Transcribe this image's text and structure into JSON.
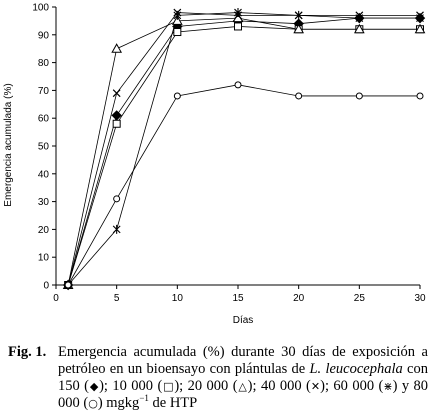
{
  "chart_data": {
    "type": "line",
    "xlabel": "Días",
    "ylabel": "Emergencia acumulada (%)",
    "xlim": [
      0,
      30
    ],
    "ylim": [
      0,
      100
    ],
    "xticks": [
      0,
      5,
      10,
      15,
      20,
      25,
      30
    ],
    "yticks": [
      0,
      10,
      20,
      30,
      40,
      50,
      60,
      70,
      80,
      90,
      100
    ],
    "grid": false,
    "legend": "none",
    "series": [
      {
        "marker": "diamond",
        "x": [
          1,
          5,
          10,
          15,
          20,
          25,
          30
        ],
        "y": [
          0,
          61,
          93,
          95,
          94,
          96,
          96
        ]
      },
      {
        "marker": "square",
        "x": [
          1,
          5,
          10,
          15,
          20,
          25,
          30
        ],
        "y": [
          0,
          58,
          91,
          93,
          92,
          92,
          92
        ]
      },
      {
        "marker": "triangle",
        "x": [
          1,
          5,
          10,
          15,
          20,
          25,
          30
        ],
        "y": [
          0,
          85,
          95,
          96,
          92,
          92,
          92
        ]
      },
      {
        "marker": "x",
        "x": [
          1,
          5,
          10,
          15,
          20,
          25,
          30
        ],
        "y": [
          0,
          69,
          98,
          97,
          97,
          97,
          97
        ]
      },
      {
        "marker": "asterisk",
        "x": [
          1,
          5,
          10,
          15,
          20,
          25,
          30
        ],
        "y": [
          0,
          20,
          97,
          98,
          97,
          96,
          96
        ]
      },
      {
        "marker": "circle",
        "x": [
          1,
          5,
          10,
          15,
          20,
          25,
          30
        ],
        "y": [
          0,
          31,
          68,
          72,
          68,
          68,
          68
        ]
      }
    ]
  },
  "caption": {
    "label": "Fig. 1.",
    "text_1": "Emergencia acumulada (%) durante 30 días de exposición a petróleo en un bioensayo con plántulas de ",
    "species": "L. leucocephala",
    "text_2": " con 150 (",
    "sym_1": "◆",
    "text_3": "); 10 000 (",
    "sym_2": "□",
    "text_4": "); 20 000 (",
    "sym_3": "△",
    "text_5": "); 40 000 (",
    "sym_4": "✕",
    "text_6": "); 60 000 (",
    "sym_5": "⋇",
    "text_7": ") y 80 000 (",
    "sym_6": "○",
    "text_8": ") mgkg",
    "sup": "−1",
    "text_9": " de HTP"
  }
}
